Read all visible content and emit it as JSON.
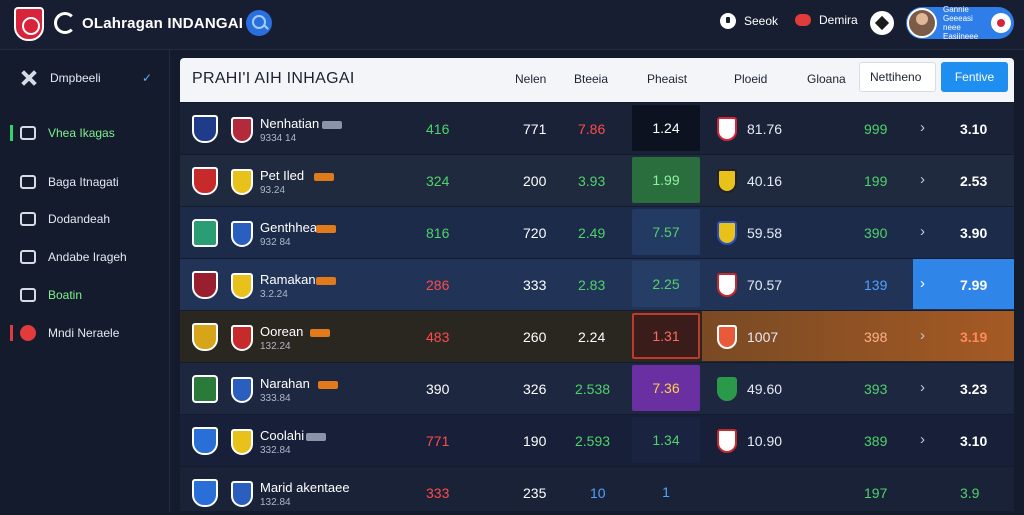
{
  "topbar": {
    "title": "OLahragan INDANGAI",
    "items": [
      {
        "label": "Seeok",
        "icon": "chat-icon"
      },
      {
        "label": "Demira",
        "icon": "red-pill-icon"
      }
    ],
    "profile": {
      "line1": "Gannie",
      "line2": "Geeeasi neee",
      "line3": "Easiineee"
    }
  },
  "sidebar": {
    "items": [
      {
        "label": "Dmpbeeli",
        "icon": "cross-icon"
      },
      {
        "label": "Vhea Ikagas",
        "icon": "document-icon"
      },
      {
        "label": "Baga Itnagati",
        "icon": "list-icon"
      },
      {
        "label": "Dodandeah",
        "icon": "calendar-icon"
      },
      {
        "label": "Andabe Irageh",
        "icon": "clipboard-icon"
      },
      {
        "label": "Boatin",
        "icon": "chat-icon"
      },
      {
        "label": "Mndi Neraele",
        "icon": "red-ball-icon"
      }
    ]
  },
  "table": {
    "title": "PRAHI'I AIH INHAGAI",
    "columns": [
      "Nelen",
      "Bteeia",
      "Pheaist",
      "Ploeid",
      "Gloana"
    ],
    "tab_light": "Nettiheno",
    "tab_blue": "Fentive",
    "rows": [
      {
        "team": "Nenhatian",
        "sub": "9334 14",
        "c1": "416",
        "c2": "771",
        "c3": "7.86",
        "box": "1.24",
        "mid": "81.76",
        "r": "999",
        "last": "3.10"
      },
      {
        "team": "Pet Iled",
        "sub": "93.24",
        "c1": "324",
        "c2": "200",
        "c3": "3.93",
        "box": "1.99",
        "mid": "40.16",
        "r": "199",
        "last": "2.53"
      },
      {
        "team": "Genthhea",
        "sub": "932 84",
        "c1": "816",
        "c2": "720",
        "c3": "2.49",
        "box": "7.57",
        "mid": "59.58",
        "r": "390",
        "last": "3.90"
      },
      {
        "team": "Ramakan",
        "sub": "3.2.24",
        "c1": "286",
        "c2": "333",
        "c3": "2.83",
        "box": "2.25",
        "mid": "70.57",
        "r": "139",
        "last": "7.99"
      },
      {
        "team": "Oorean",
        "sub": "132.24",
        "c1": "483",
        "c2": "260",
        "c3": "2.24",
        "box": "1.31",
        "mid": "1007",
        "r": "398",
        "last": "3.19"
      },
      {
        "team": "Narahan",
        "sub": "333.84",
        "c1": "390",
        "c2": "326",
        "c3": "2.538",
        "box": "7.36",
        "mid": "49.60",
        "r": "393",
        "last": "3.23"
      },
      {
        "team": "Coolahi",
        "sub": "332.84",
        "c1": "771",
        "c2": "190",
        "c3": "2.593",
        "box": "1.34",
        "mid": "10.90",
        "r": "389",
        "last": "3.10"
      },
      {
        "team": "Marid akentaee",
        "sub": "132.84",
        "c1": "333",
        "c2": "235",
        "c3": "10",
        "box": "1",
        "mid": "",
        "r": "197",
        "last": "3.9"
      }
    ]
  },
  "colors": {
    "accent": "#1e8ef0",
    "positive": "#4fd36a",
    "negative": "#ff4b4b",
    "background": "#141b2d"
  }
}
